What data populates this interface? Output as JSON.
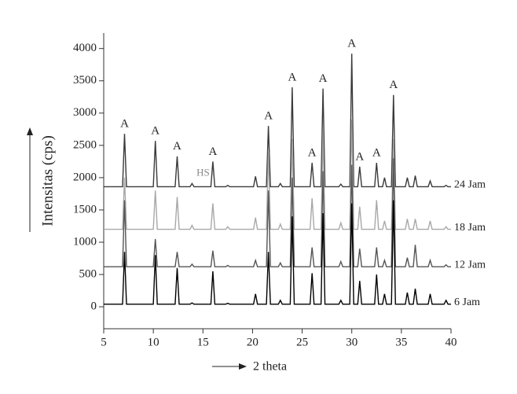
{
  "chart_data": {
    "type": "line",
    "x_label": "2 theta",
    "y_label": "Intensitas (cps)",
    "x": [
      5,
      6.9,
      7.1,
      7.3,
      10.0,
      10.2,
      10.4,
      12.2,
      12.4,
      12.6,
      13.7,
      13.9,
      14.1,
      15.8,
      16.0,
      16.2,
      17.3,
      17.5,
      17.7,
      20.1,
      20.3,
      20.5,
      21.4,
      21.6,
      21.8,
      22.6,
      22.8,
      23.0,
      23.8,
      24.0,
      24.2,
      25.8,
      26.0,
      26.2,
      26.9,
      27.1,
      27.3,
      28.7,
      28.9,
      29.1,
      29.8,
      30.0,
      30.2,
      30.6,
      30.8,
      31.0,
      32.3,
      32.5,
      32.7,
      33.1,
      33.3,
      33.5,
      34.0,
      34.2,
      34.4,
      35.4,
      35.6,
      35.8,
      36.2,
      36.4,
      36.6,
      37.7,
      37.9,
      38.1,
      39.3,
      39.5,
      39.7,
      40
    ],
    "series": [
      {
        "name": "24 Jam",
        "color": "#3a3a3a",
        "values": [
          1860,
          1860,
          2680,
          1860,
          1860,
          2570,
          1860,
          1860,
          2330,
          1860,
          1860,
          1910,
          1860,
          1860,
          2250,
          1860,
          1860,
          1880,
          1860,
          1860,
          2020,
          1860,
          1860,
          2800,
          1860,
          1860,
          1910,
          1860,
          1860,
          3400,
          1860,
          1860,
          2230,
          1860,
          1860,
          3380,
          1860,
          1860,
          1900,
          1860,
          1860,
          3920,
          1860,
          1860,
          2170,
          1860,
          1860,
          2230,
          1860,
          1860,
          2000,
          1860,
          1860,
          3280,
          1860,
          1860,
          2000,
          1860,
          1860,
          2030,
          1860,
          1860,
          1950,
          1860,
          1860,
          1880,
          1860,
          1860
        ]
      },
      {
        "name": "18 Jam",
        "color": "#a8a8a8",
        "values": [
          1200,
          1200,
          2000,
          1200,
          1200,
          1800,
          1200,
          1200,
          1700,
          1200,
          1200,
          1260,
          1200,
          1200,
          1600,
          1200,
          1200,
          1240,
          1200,
          1200,
          1380,
          1200,
          1200,
          2400,
          1200,
          1200,
          1280,
          1200,
          1200,
          2600,
          1200,
          1200,
          1680,
          1200,
          1200,
          2700,
          1200,
          1200,
          1300,
          1200,
          1200,
          2900,
          1200,
          1200,
          1550,
          1200,
          1200,
          1650,
          1200,
          1200,
          1330,
          1200,
          1200,
          2600,
          1200,
          1200,
          1360,
          1200,
          1200,
          1360,
          1200,
          1200,
          1330,
          1200,
          1200,
          1240,
          1200,
          1200
        ]
      },
      {
        "name": "12 Jam",
        "color": "#555555",
        "values": [
          620,
          620,
          1650,
          620,
          620,
          1050,
          620,
          620,
          850,
          620,
          620,
          660,
          620,
          620,
          870,
          620,
          620,
          640,
          620,
          620,
          720,
          620,
          620,
          1800,
          620,
          620,
          680,
          620,
          620,
          2000,
          620,
          620,
          920,
          620,
          620,
          2100,
          620,
          620,
          700,
          620,
          620,
          2200,
          620,
          620,
          900,
          620,
          620,
          920,
          620,
          620,
          720,
          620,
          620,
          2300,
          620,
          620,
          760,
          620,
          620,
          960,
          620,
          620,
          720,
          620,
          620,
          650,
          620,
          620
        ]
      },
      {
        "name": "6 Jam",
        "color": "#000000",
        "values": [
          40,
          40,
          850,
          40,
          40,
          800,
          40,
          40,
          600,
          40,
          40,
          60,
          40,
          40,
          550,
          40,
          40,
          55,
          40,
          40,
          200,
          40,
          40,
          850,
          40,
          40,
          100,
          40,
          40,
          1400,
          40,
          40,
          520,
          40,
          40,
          1450,
          40,
          40,
          100,
          40,
          40,
          1600,
          40,
          40,
          400,
          40,
          40,
          500,
          40,
          40,
          200,
          40,
          40,
          1650,
          40,
          40,
          220,
          40,
          40,
          280,
          40,
          40,
          200,
          40,
          40,
          100,
          40,
          40
        ]
      }
    ],
    "annotations": [
      {
        "text": "A",
        "x": 7.1
      },
      {
        "text": "A",
        "x": 10.2
      },
      {
        "text": "A",
        "x": 12.4
      },
      {
        "text": "HS",
        "x": 13.9
      },
      {
        "text": "A",
        "x": 16.0
      },
      {
        "text": "A",
        "x": 21.6
      },
      {
        "text": "A",
        "x": 24.0
      },
      {
        "text": "A",
        "x": 26.0
      },
      {
        "text": "A",
        "x": 27.1
      },
      {
        "text": "A",
        "x": 30.0
      },
      {
        "text": "A",
        "x": 30.8
      },
      {
        "text": "A",
        "x": 32.5
      },
      {
        "text": "A",
        "x": 34.2
      }
    ],
    "xlim": [
      5,
      40
    ],
    "xticks": [
      5,
      10,
      15,
      20,
      25,
      30,
      35,
      40
    ],
    "ylim": [
      -340,
      4240
    ],
    "yticks": [
      0,
      500,
      1000,
      1500,
      2000,
      2500,
      3000,
      3500,
      4000
    ]
  }
}
